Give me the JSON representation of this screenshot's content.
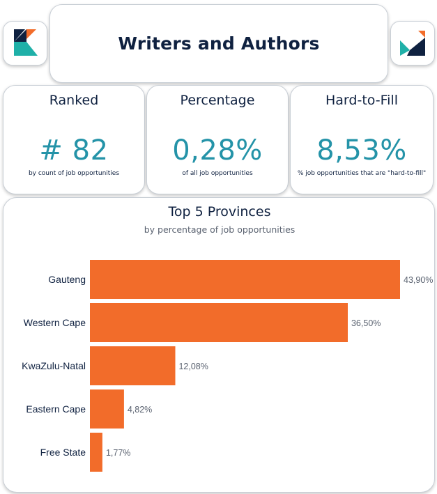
{
  "header": {
    "title": "Writers and Authors"
  },
  "logo": {
    "colors": {
      "orange": "#f26c2a",
      "teal": "#1fb0a8",
      "navy": "#0f2140"
    }
  },
  "kpis": {
    "ranked": {
      "title": "Ranked",
      "value": "# 82",
      "subtitle": "by count of job opportunities"
    },
    "percentage": {
      "title": "Percentage",
      "value": "0,28%",
      "subtitle": "of all job opportunities"
    },
    "hard_to_fill": {
      "title": "Hard-to-Fill",
      "value": "8,53%",
      "subtitle": "% job opportunities that are \"hard-to-fill\""
    }
  },
  "colors": {
    "accent_value": "#2493a8",
    "bar": "#f26c2a",
    "text_dark": "#0f2140",
    "label_gray": "#5a6270"
  },
  "chart_data": {
    "type": "bar",
    "orientation": "horizontal",
    "title": "Top 5 Provinces",
    "subtitle": "by percentage of job opportunities",
    "categories": [
      "Gauteng",
      "Western Cape",
      "KwaZulu-Natal",
      "Eastern Cape",
      "Free State"
    ],
    "values": [
      43.9,
      36.5,
      12.08,
      4.82,
      1.77
    ],
    "data_labels": [
      "43,90%",
      "36,50%",
      "12,08%",
      "4,82%",
      "1,77%"
    ],
    "xlim": [
      0,
      43.9
    ],
    "grid": false,
    "legend": "none"
  }
}
